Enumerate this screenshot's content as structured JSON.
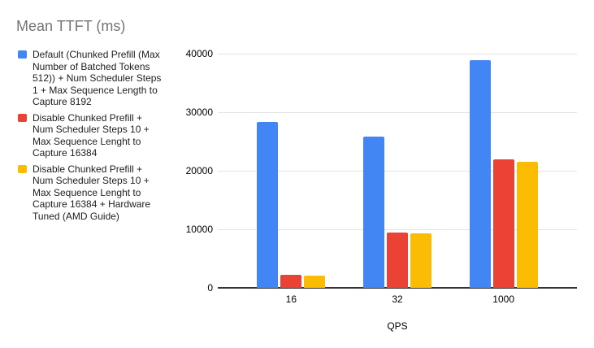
{
  "chart_data": {
    "type": "bar",
    "title": "Mean TTFT (ms)",
    "xlabel": "QPS",
    "ylabel": "",
    "categories": [
      "16",
      "32",
      "1000"
    ],
    "series": [
      {
        "name": "Default (Chunked Prefill (Max Number of Batched Tokens 512)) + Num Scheduler Steps 1 + Max Sequence Length to Capture 8192",
        "legend_lines": [
          "Default (Chunked Prefill (Max",
          "Number of Batched Tokens",
          "512)) + Num Scheduler Steps",
          "1 + Max Sequence Length to",
          "Capture 8192"
        ],
        "color": "#4285F4",
        "values": [
          28300,
          25800,
          38900
        ]
      },
      {
        "name": "Disable Chunked Prefill + Num Scheduler Steps 10 + Max Sequence Lenght to Capture 16384",
        "legend_lines": [
          "Disable Chunked Prefill +",
          "Num Scheduler Steps 10 +",
          "Max Sequence Lenght to",
          "Capture 16384"
        ],
        "color": "#EA4335",
        "values": [
          2200,
          9500,
          22000
        ]
      },
      {
        "name": "Disable Chunked Prefill + Num Scheduler Steps 10 + Max Sequence Lenght to Capture 16384 + Hardware Tuned (AMD Guide)",
        "legend_lines": [
          "Disable Chunked Prefill +",
          "Num Scheduler Steps 10 +",
          "Max Sequence Lenght to",
          "Capture 16384 + Hardware",
          "Tuned (AMD Guide)"
        ],
        "color": "#FBBC04",
        "values": [
          2100,
          9350,
          21500
        ]
      }
    ],
    "ylim": [
      0,
      40000
    ],
    "yticks": [
      0,
      10000,
      20000,
      30000,
      40000
    ],
    "grid": true,
    "legend_position": "left",
    "colors": {
      "title_text": "#757575",
      "legend_text": "#212121",
      "axis_text": "#000000",
      "gridline": "#e3e3e3",
      "axis_line": "#333333",
      "background": "#ffffff"
    }
  }
}
